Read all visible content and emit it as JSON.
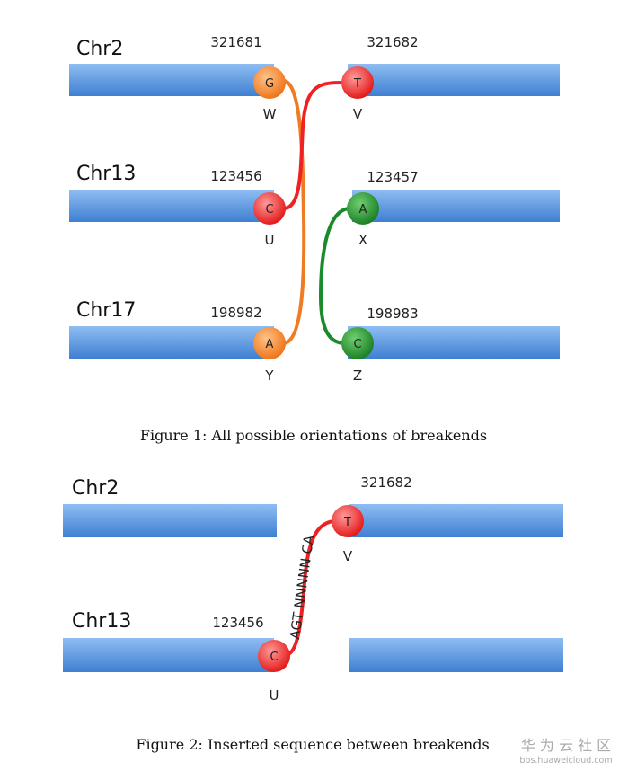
{
  "colors": {
    "bar": "#5b95dc",
    "orange": "#f07b22",
    "red": "#ee2222",
    "green": "#1a8a2a"
  },
  "figure1": {
    "chromosomes": [
      "Chr2",
      "Chr13",
      "Chr17"
    ],
    "positions": {
      "chr2_left": "321681",
      "chr2_right": "321682",
      "chr13_left": "123456",
      "chr13_right": "123457",
      "chr17_left": "198982",
      "chr17_right": "198983"
    },
    "breakends": [
      {
        "base": "G",
        "label": "W",
        "color": "orange"
      },
      {
        "base": "T",
        "label": "V",
        "color": "red"
      },
      {
        "base": "C",
        "label": "U",
        "color": "red"
      },
      {
        "base": "A",
        "label": "X",
        "color": "green"
      },
      {
        "base": "A",
        "label": "Y",
        "color": "orange"
      },
      {
        "base": "C",
        "label": "Z",
        "color": "green"
      }
    ],
    "caption": "Figure 1: All possible orientations of breakends"
  },
  "figure2": {
    "chromosomes": [
      "Chr2",
      "Chr13"
    ],
    "positions": {
      "chr2_right": "321682",
      "chr13_left": "123456"
    },
    "breakends": [
      {
        "base": "T",
        "label": "V",
        "color": "red"
      },
      {
        "base": "C",
        "label": "U",
        "color": "red"
      }
    ],
    "inserted_sequence": "AGT NNNNN CA",
    "caption": "Figure 2: Inserted sequence between breakends"
  },
  "watermark": {
    "title": "华 为 云 社 区",
    "url": "bbs.huaweicloud.com"
  }
}
